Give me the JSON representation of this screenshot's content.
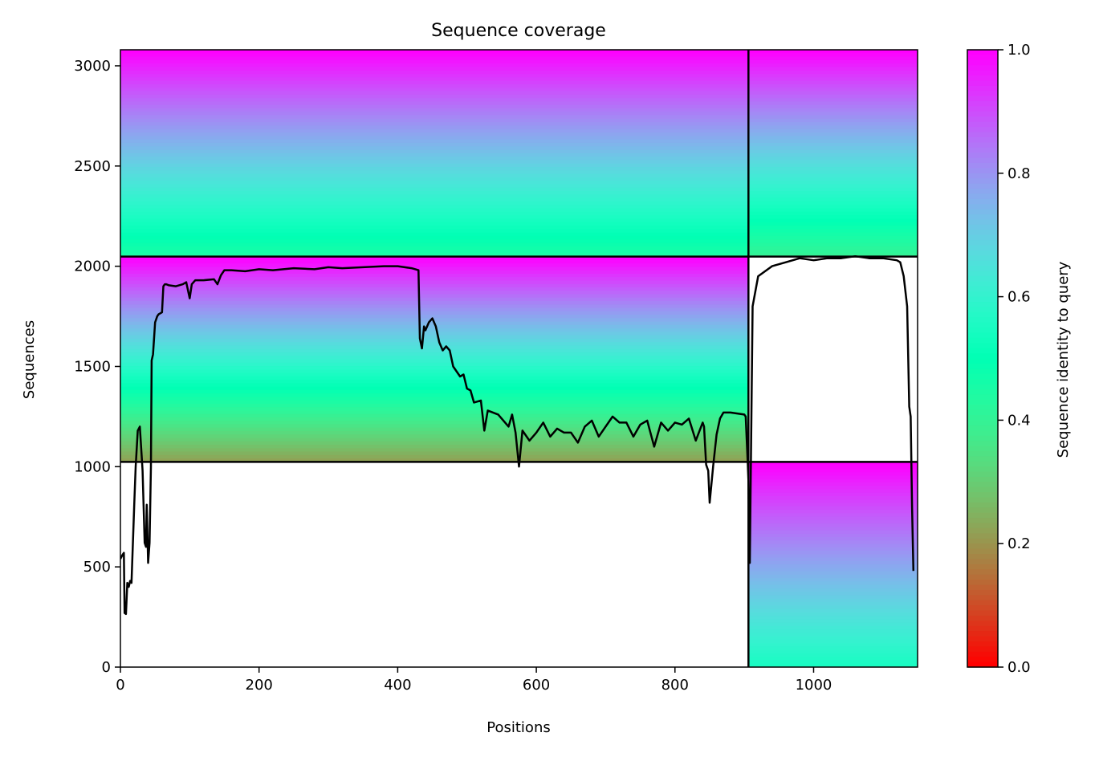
{
  "chart_data": {
    "type": "heatmap",
    "title": "Sequence coverage",
    "xlabel": "Positions",
    "ylabel": "Sequences",
    "xlim": [
      0,
      1150
    ],
    "ylim": [
      0,
      3080
    ],
    "x_ticks": [
      0,
      200,
      400,
      600,
      800,
      1000
    ],
    "y_ticks": [
      0,
      500,
      1000,
      1500,
      2000,
      2500,
      3000
    ],
    "colorbar": {
      "label": "Sequence identity to query",
      "range": [
        0.0,
        1.0
      ],
      "ticks": [
        "0.0",
        "0.2",
        "0.4",
        "0.6",
        "0.8",
        "1.0"
      ],
      "colormap": "rainbow_r"
    },
    "grid": false,
    "chain_boundaries": {
      "x": [
        906
      ],
      "y": [
        1024,
        2048
      ]
    },
    "blocks": [
      {
        "name": "block-top-left",
        "x": [
          0,
          906
        ],
        "y": [
          2048,
          3080
        ],
        "identity_top": 1.0,
        "identity_bottom": 0.45
      },
      {
        "name": "block-top-right",
        "x": [
          906,
          1150
        ],
        "y": [
          2048,
          3080
        ],
        "identity_top": 1.0,
        "identity_bottom": 0.4
      },
      {
        "name": "block-mid-left",
        "x": [
          0,
          906
        ],
        "y": [
          1024,
          2048
        ],
        "identity_top": 1.0,
        "identity_bottom": 0.22
      },
      {
        "name": "block-bottom-right",
        "x": [
          906,
          1150
        ],
        "y": [
          0,
          1024
        ],
        "identity_top": 1.0,
        "identity_bottom": 0.55
      }
    ],
    "coverage_line": {
      "color": "#000000",
      "x": [
        0,
        3,
        5,
        6,
        8,
        10,
        12,
        14,
        16,
        20,
        22,
        25,
        28,
        32,
        35,
        37,
        38,
        40,
        42,
        44,
        45,
        47,
        50,
        53,
        55,
        60,
        62,
        64,
        66,
        70,
        80,
        90,
        95,
        100,
        103,
        108,
        120,
        135,
        140,
        145,
        150,
        160,
        180,
        200,
        220,
        250,
        280,
        300,
        320,
        350,
        380,
        400,
        420,
        430,
        432,
        435,
        438,
        440,
        445,
        450,
        455,
        460,
        465,
        470,
        475,
        480,
        490,
        495,
        500,
        505,
        510,
        520,
        525,
        530,
        545,
        560,
        565,
        570,
        575,
        580,
        590,
        600,
        610,
        620,
        630,
        640,
        650,
        660,
        670,
        680,
        690,
        700,
        710,
        720,
        730,
        740,
        750,
        760,
        770,
        780,
        790,
        800,
        810,
        820,
        830,
        840,
        842,
        845,
        848,
        850,
        855,
        860,
        865,
        870,
        880,
        900,
        902,
        905,
        906,
        908,
        912,
        920,
        940,
        960,
        980,
        1000,
        1020,
        1040,
        1060,
        1080,
        1100,
        1120,
        1125,
        1130,
        1135,
        1138,
        1140,
        1142,
        1144,
        1146
      ],
      "y": [
        540,
        560,
        570,
        270,
        265,
        420,
        400,
        430,
        420,
        820,
        1000,
        1180,
        1200,
        980,
        620,
        600,
        810,
        520,
        620,
        1000,
        1530,
        1560,
        1720,
        1750,
        1760,
        1770,
        1900,
        1910,
        1910,
        1905,
        1900,
        1910,
        1920,
        1840,
        1910,
        1930,
        1930,
        1935,
        1910,
        1955,
        1980,
        1980,
        1975,
        1985,
        1980,
        1990,
        1985,
        1995,
        1990,
        1995,
        2000,
        2000,
        1990,
        1980,
        1640,
        1590,
        1700,
        1680,
        1720,
        1740,
        1700,
        1620,
        1580,
        1600,
        1580,
        1500,
        1450,
        1460,
        1390,
        1380,
        1320,
        1330,
        1180,
        1280,
        1260,
        1200,
        1260,
        1170,
        1000,
        1180,
        1130,
        1170,
        1220,
        1150,
        1190,
        1170,
        1170,
        1120,
        1200,
        1230,
        1150,
        1200,
        1250,
        1220,
        1220,
        1150,
        1210,
        1230,
        1100,
        1220,
        1180,
        1220,
        1210,
        1240,
        1130,
        1220,
        1200,
        1010,
        980,
        820,
        1000,
        1160,
        1240,
        1270,
        1270,
        1260,
        1250,
        1020,
        930,
        520,
        1800,
        1950,
        2000,
        2020,
        2040,
        2030,
        2040,
        2040,
        2050,
        2040,
        2040,
        2030,
        2020,
        1950,
        1800,
        1300,
        1250,
        800,
        480
      ]
    }
  }
}
